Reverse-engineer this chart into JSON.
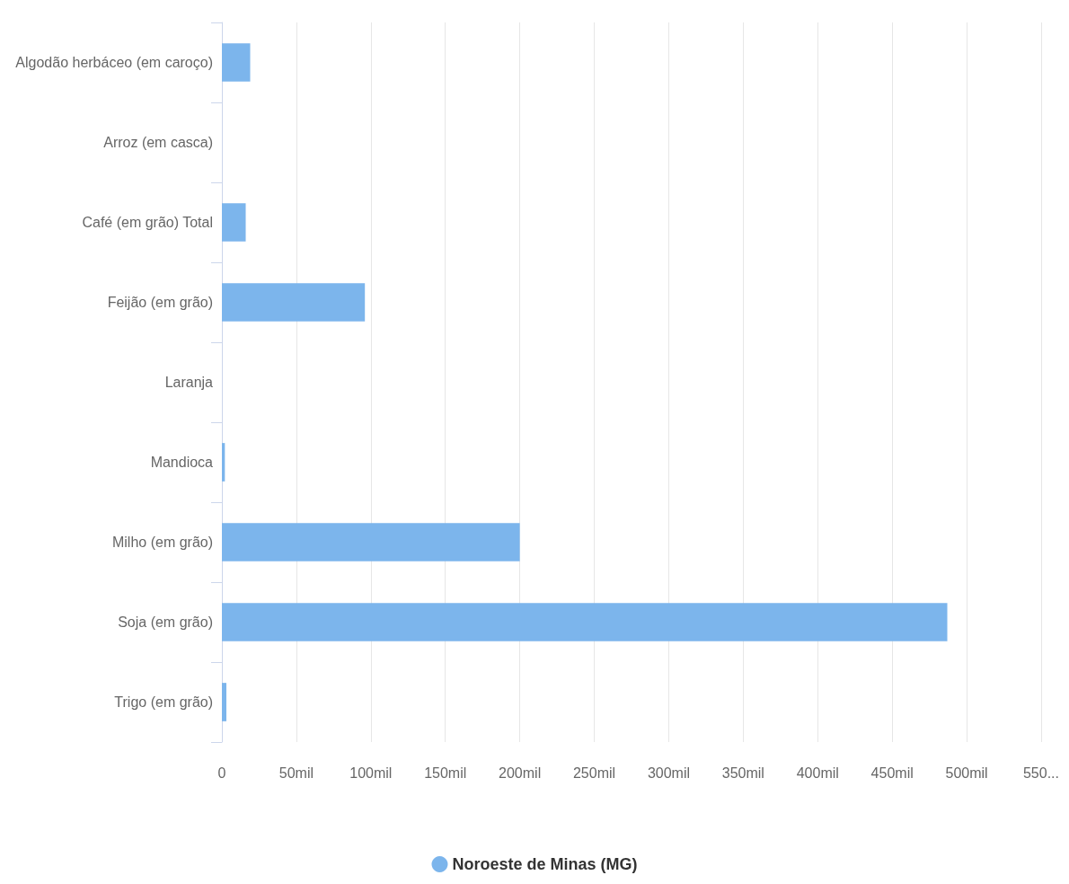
{
  "chart_data": {
    "type": "bar",
    "orientation": "horizontal",
    "categories": [
      "Algodão herbáceo (em caroço)",
      "Arroz (em casca)",
      "Café (em grão) Total",
      "Feijão (em grão)",
      "Laranja",
      "Mandioca",
      "Milho (em grão)",
      "Soja (em grão)",
      "Trigo (em grão)"
    ],
    "series": [
      {
        "name": "Noroeste de Minas (MG)",
        "color": "#7cb5ec",
        "values": [
          19,
          0,
          16,
          96,
          0,
          2,
          200,
          487,
          3
        ]
      }
    ],
    "xlim": [
      0,
      550
    ],
    "xticks": [
      0,
      {
        "value": 50,
        "label": "50mil"
      },
      {
        "value": 100,
        "label": "100mil"
      },
      {
        "value": 150,
        "label": "150mil"
      },
      {
        "value": 200,
        "label": "200mil"
      },
      {
        "value": 250,
        "label": "250mil"
      },
      {
        "value": 300,
        "label": "300mil"
      },
      {
        "value": 350,
        "label": "350mil"
      },
      {
        "value": 400,
        "label": "400mil"
      },
      {
        "value": 450,
        "label": "450mil"
      },
      {
        "value": 500,
        "label": "500mil"
      },
      {
        "value": 550,
        "label": "550..."
      }
    ],
    "grid": "x",
    "legend": "bottom"
  }
}
